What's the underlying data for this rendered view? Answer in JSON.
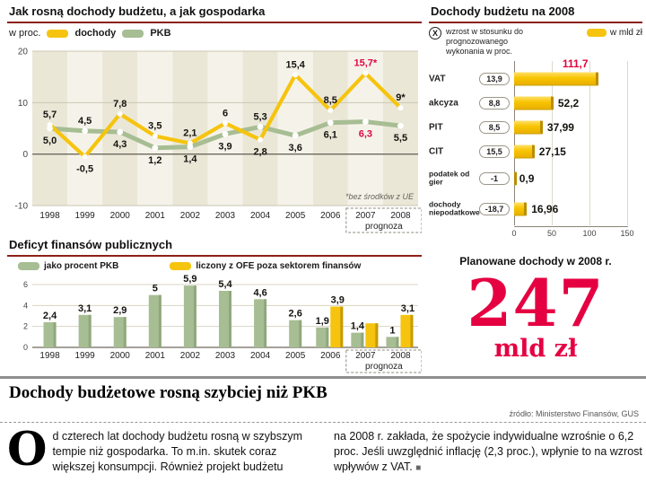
{
  "chart_data": [
    {
      "type": "line",
      "title": "Jak rosną dochody budżetu, a jak gospodarka",
      "unit_label": "w proc.",
      "categories": [
        "1998",
        "1999",
        "2000",
        "2001",
        "2002",
        "2003",
        "2004",
        "2005",
        "2006",
        "2007",
        "2008"
      ],
      "series": [
        {
          "name": "dochody",
          "color": "#f6c40e",
          "values": [
            5.7,
            -0.5,
            7.8,
            3.5,
            2.1,
            6,
            2.8,
            15.4,
            8.5,
            15.7,
            9
          ],
          "labels": [
            "5,7",
            "-0,5",
            "7,8",
            "3,5",
            "2,1",
            "6",
            "2,8",
            "15,4",
            "8,5",
            "15,7*",
            "9*"
          ],
          "red_labels": [
            9
          ]
        },
        {
          "name": "PKB",
          "color": "#a7bd93",
          "values": [
            5.0,
            4.5,
            4.3,
            1.2,
            1.4,
            3.9,
            5.3,
            3.6,
            6.1,
            6.3,
            5.5
          ],
          "labels": [
            "5,0",
            "4,5",
            "4,3",
            "1,2",
            "1,4",
            "3,9",
            "5,3",
            "3,6",
            "6,1",
            "6,3",
            "5,5"
          ],
          "red_labels": [
            9
          ]
        }
      ],
      "ylim": [
        -10,
        20
      ],
      "yticks": [
        20,
        10,
        0,
        -10
      ],
      "note": "*bez środków z UE",
      "forecast": {
        "label": "prognoza",
        "from": 9,
        "to": 10
      }
    },
    {
      "type": "bar-horizontal",
      "title": "Dochody budżetu na 2008",
      "legend_x_symbol": "X",
      "legend_x": "wzrost w stosunku do prognozowanego wykonania w proc.",
      "legend_bar": "w mld zł",
      "xticks": [
        0,
        50,
        100,
        150
      ],
      "xmax": 150,
      "rows": [
        {
          "label": "VAT",
          "pct": "13,9",
          "value": 111.7,
          "value_label": "111,7",
          "highlight": true
        },
        {
          "label": "akcyza",
          "pct": "8,8",
          "value": 52.2,
          "value_label": "52,2"
        },
        {
          "label": "PIT",
          "pct": "8,5",
          "value": 37.99,
          "value_label": "37,99"
        },
        {
          "label": "CIT",
          "pct": "15,5",
          "value": 27.15,
          "value_label": "27,15"
        },
        {
          "label": "podatek od gier",
          "pct": "-1",
          "value": 0.9,
          "value_label": "0,9"
        },
        {
          "label": "dochody niepodatkowe",
          "pct": "-18,7",
          "value": 16.96,
          "value_label": "16,96"
        }
      ],
      "footer_caption": "Planowane dochody w 2008 r.",
      "big_value": "247",
      "big_unit": "mld zł"
    },
    {
      "type": "bar",
      "title": "Deficyt finansów publicznych",
      "categories": [
        "1998",
        "1999",
        "2000",
        "2001",
        "2002",
        "2003",
        "2004",
        "2005",
        "2006",
        "2007",
        "2008"
      ],
      "series": [
        {
          "name": "jako procent PKB",
          "color": "#a7bd93",
          "values": [
            2.4,
            3.1,
            2.9,
            5,
            5.9,
            5.4,
            4.6,
            2.6,
            1.9,
            1.4,
            1
          ],
          "labels": [
            "2,4",
            "3,1",
            "2,9",
            "5",
            "5,9",
            "5,4",
            "4,6",
            "2,6",
            "1,9",
            "1,4",
            "1"
          ]
        },
        {
          "name": "liczony z OFE poza sektorem finansów",
          "color": "#f6c40e",
          "values": [
            null,
            null,
            null,
            null,
            null,
            null,
            null,
            null,
            3.9,
            2.3,
            3.1
          ],
          "labels": [
            "",
            "",
            "",
            "",
            "",
            "",
            "",
            "",
            "3,9",
            "",
            "3,1"
          ]
        }
      ],
      "ylim": [
        0,
        6
      ],
      "yticks": [
        6,
        4,
        2,
        0
      ],
      "forecast": {
        "label": "prognoza",
        "from": 9,
        "to": 10
      }
    }
  ],
  "article": {
    "headline": "Dochody budżetowe rosną szybciej niż PKB",
    "source": "źródło: Ministerstwo Finansów, GUS",
    "dropcap": "O",
    "col1": "d czterech lat dochody budżetu rosną w szybszym tempie niż gospodarka. To m.in. skutek coraz większej konsumpcji. Również projekt budżetu",
    "col2": "na 2008 r. zakłada, że spożycie indywidualne wzrośnie o 6,2 proc. Jeśli uwzględnić inflację (2,3 proc.), wpłynie to na wzrost wpływów z VAT.",
    "end_mark": "■"
  },
  "colors": {
    "accent_red": "#e2003c",
    "title_rule_red": "#8c2017",
    "yellow": "#f6c40e",
    "green": "#a7bd93"
  }
}
